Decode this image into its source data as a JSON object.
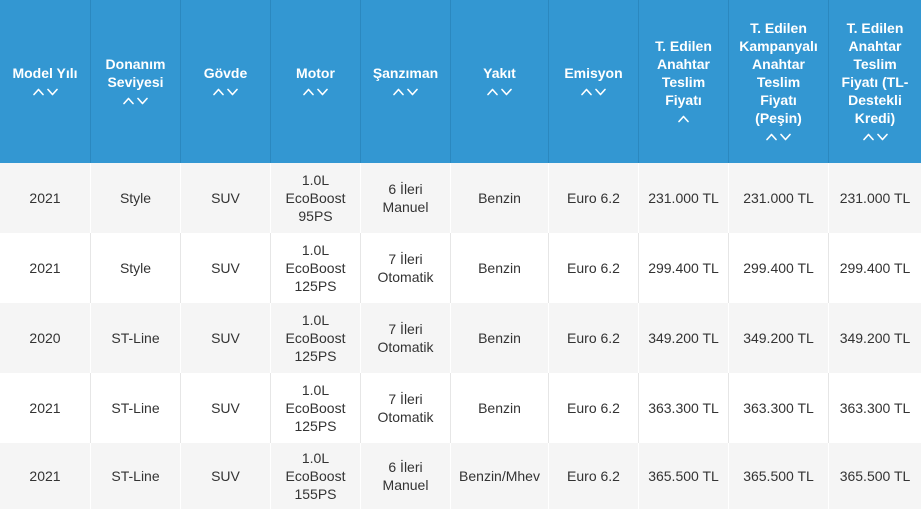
{
  "colors": {
    "header_bg": "#3397d2",
    "header_text": "#ffffff",
    "header_border": "#2b88bf",
    "row_alt_bg": "#f5f5f5",
    "body_text": "#333333",
    "body_border": "#e6e6e6"
  },
  "table": {
    "columns": [
      {
        "label": "Model Yılı",
        "sort_icons": [
          "chevron-up-icon",
          "chevron-down-icon"
        ]
      },
      {
        "label": "Donanım\nSeviyesi",
        "sort_icons": [
          "chevron-up-icon",
          "chevron-down-icon"
        ]
      },
      {
        "label": "Gövde",
        "sort_icons": [
          "chevron-up-icon",
          "chevron-down-icon"
        ]
      },
      {
        "label": "Motor",
        "sort_icons": [
          "chevron-up-icon",
          "chevron-down-icon"
        ]
      },
      {
        "label": "Şanzıman",
        "sort_icons": [
          "chevron-up-icon",
          "chevron-down-icon"
        ]
      },
      {
        "label": "Yakıt",
        "sort_icons": [
          "chevron-up-icon",
          "chevron-down-icon"
        ]
      },
      {
        "label": "Emisyon",
        "sort_icons": [
          "chevron-up-icon",
          "chevron-down-icon"
        ]
      },
      {
        "label": "T. Edilen\nAnahtar\nTeslim\nFiyatı",
        "sort_icons": [
          "chevron-up-icon"
        ]
      },
      {
        "label": "T. Edilen\nKampanyalı\nAnahtar\nTeslim\nFiyatı\n(Peşin)",
        "sort_icons": [
          "chevron-up-icon",
          "chevron-down-icon"
        ]
      },
      {
        "label": "T. Edilen\nAnahtar\nTeslim\nFiyatı (TL-Destekli\nKredi)",
        "sort_icons": [
          "chevron-up-icon",
          "chevron-down-icon"
        ]
      }
    ],
    "rows": [
      [
        "2021",
        "Style",
        "SUV",
        "1.0L EcoBoost 95PS",
        "6 İleri Manuel",
        "Benzin",
        "Euro 6.2",
        "231.000 TL",
        "231.000 TL",
        "231.000 TL"
      ],
      [
        "2021",
        "Style",
        "SUV",
        "1.0L EcoBoost 125PS",
        "7 İleri Otomatik",
        "Benzin",
        "Euro 6.2",
        "299.400 TL",
        "299.400 TL",
        "299.400 TL"
      ],
      [
        "2020",
        "ST-Line",
        "SUV",
        "1.0L EcoBoost 125PS",
        "7 İleri Otomatik",
        "Benzin",
        "Euro 6.2",
        "349.200 TL",
        "349.200 TL",
        "349.200 TL"
      ],
      [
        "2021",
        "ST-Line",
        "SUV",
        "1.0L EcoBoost 125PS",
        "7 İleri Otomatik",
        "Benzin",
        "Euro 6.2",
        "363.300 TL",
        "363.300 TL",
        "363.300 TL"
      ],
      [
        "2021",
        "ST-Line",
        "SUV",
        "1.0L EcoBoost 155PS",
        "6 İleri Manuel",
        "Benzin/Mhev",
        "Euro 6.2",
        "365.500 TL",
        "365.500 TL",
        "365.500 TL"
      ]
    ]
  }
}
